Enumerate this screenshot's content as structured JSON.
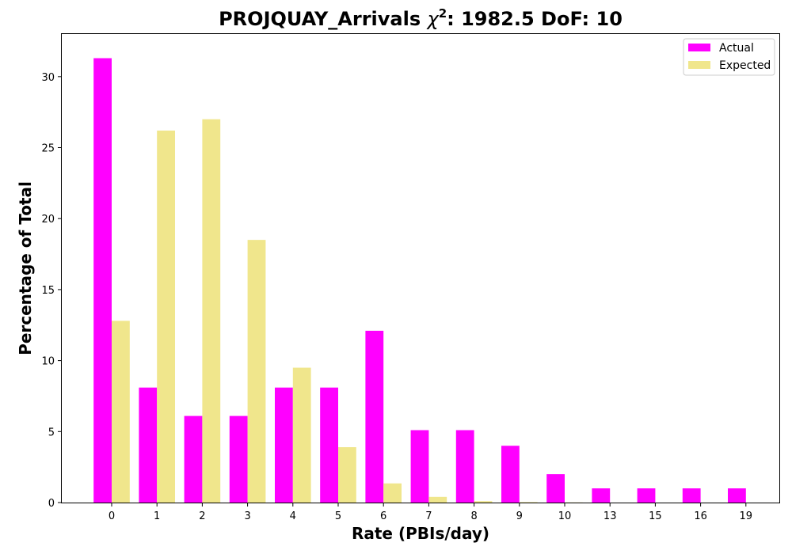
{
  "chart_data": {
    "type": "bar",
    "title_prefix": "PROJQUAY_Arrivals ",
    "title_chi": "χ",
    "title_sup": "2",
    "title_suffix": ": 1982.5 DoF: 10",
    "xlabel": "Rate (PBIs/day)",
    "ylabel": "Percentage of Total",
    "categories": [
      "0",
      "1",
      "2",
      "3",
      "4",
      "5",
      "6",
      "7",
      "8",
      "9",
      "10",
      "13",
      "15",
      "16",
      "19"
    ],
    "ylim": [
      0,
      33
    ],
    "yticks": [
      0,
      5,
      10,
      15,
      20,
      25,
      30
    ],
    "legend_position": "upper right",
    "grid": false,
    "series": [
      {
        "name": "Actual",
        "color": "#ff00ff",
        "values": [
          31.3,
          8.1,
          6.1,
          6.1,
          8.1,
          8.1,
          12.1,
          5.1,
          5.1,
          4.0,
          2.0,
          1.0,
          1.0,
          1.0,
          1.0
        ]
      },
      {
        "name": "Expected",
        "color": "#f0e68c",
        "values": [
          12.8,
          26.2,
          27.0,
          18.5,
          9.5,
          3.9,
          1.35,
          0.4,
          0.1,
          0.03,
          0.01,
          0,
          0,
          0,
          0
        ]
      }
    ]
  }
}
